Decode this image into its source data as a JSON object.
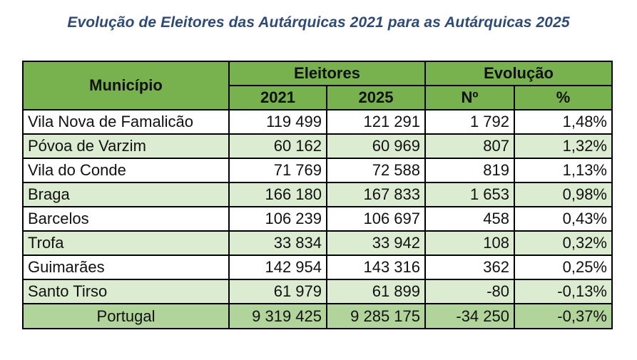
{
  "title": "Evolução de Eleitores das Autárquicas 2021 para as Autárquicas 2025",
  "headers": {
    "municipio": "Município",
    "eleitores": "Eleitores",
    "evolucao": "Evolução",
    "y2021": "2021",
    "y2025": "2025",
    "num": "Nº",
    "pct": "%"
  },
  "rows": [
    {
      "municipio": "Vila Nova de Famalicão",
      "e2021": "119 499",
      "e2025": "121 291",
      "num": "1 792",
      "pct": "1,48%"
    },
    {
      "municipio": "Póvoa de Varzim",
      "e2021": "60 162",
      "e2025": "60 969",
      "num": "807",
      "pct": "1,32%"
    },
    {
      "municipio": "Vila do Conde",
      "e2021": "71 769",
      "e2025": "72 588",
      "num": "819",
      "pct": "1,13%"
    },
    {
      "municipio": "Braga",
      "e2021": "166 180",
      "e2025": "167 833",
      "num": "1 653",
      "pct": "0,98%"
    },
    {
      "municipio": "Barcelos",
      "e2021": "106 239",
      "e2025": "106 697",
      "num": "458",
      "pct": "0,43%"
    },
    {
      "municipio": "Trofa",
      "e2021": "33 834",
      "e2025": "33 942",
      "num": "108",
      "pct": "0,32%"
    },
    {
      "municipio": "Guimarães",
      "e2021": "142 954",
      "e2025": "143 316",
      "num": "362",
      "pct": "0,25%"
    },
    {
      "municipio": "Santo Tirso",
      "e2021": "61 979",
      "e2025": "61 899",
      "num": "-80",
      "pct": "-0,13%"
    }
  ],
  "total": {
    "municipio": "Portugal",
    "e2021": "9 319 425",
    "e2025": "9 285 175",
    "num": "-34 250",
    "pct": "-0,37%"
  },
  "colors": {
    "header_green": "#78b24e",
    "row_light_green": "#dcecd0",
    "total_green": "#b1d49a",
    "title_blue": "#2e4a78"
  }
}
